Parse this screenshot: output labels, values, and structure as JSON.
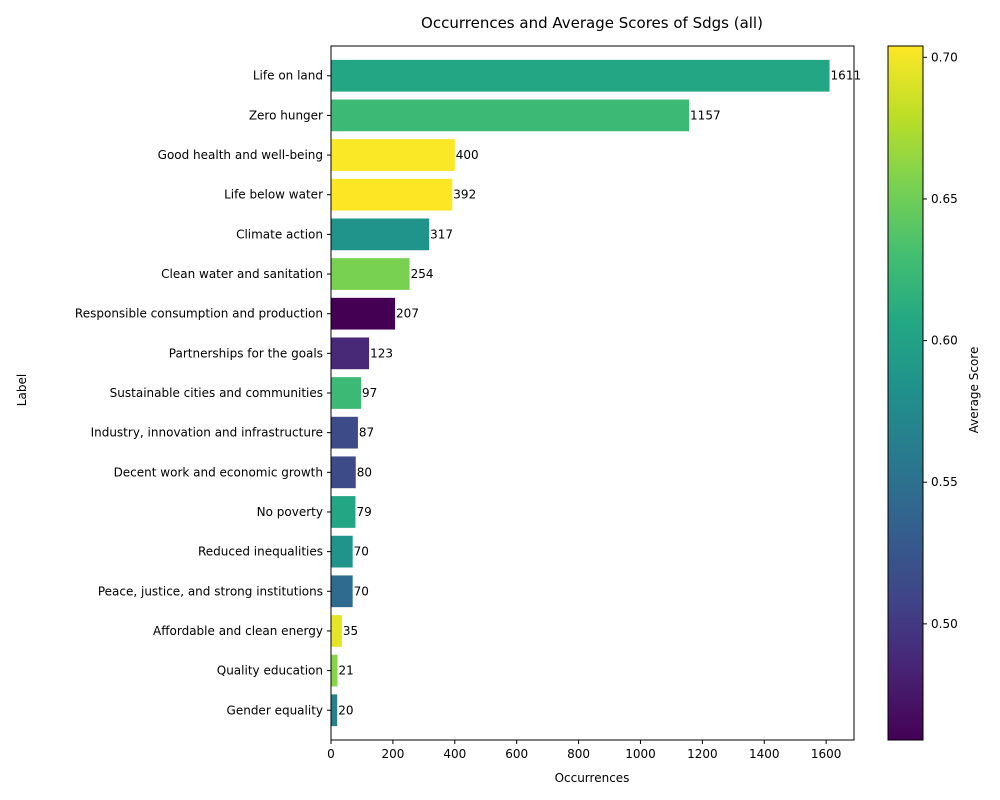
{
  "chart_data": {
    "type": "bar",
    "orientation": "horizontal",
    "title": "Occurrences and Average Scores of Sdgs (all)",
    "xlabel": "Occurrences",
    "ylabel": "Label",
    "xlim": [
      0,
      1690
    ],
    "xticks": [
      0,
      200,
      400,
      600,
      800,
      1000,
      1200,
      1400,
      1600
    ],
    "categories": [
      "Life on land",
      "Zero hunger",
      "Good health and well-being",
      "Life below water",
      "Climate action",
      "Clean water and sanitation",
      "Responsible consumption and production",
      "Partnerships for the goals",
      "Sustainable cities and communities",
      "Industry, innovation and infrastructure",
      "Decent work and economic growth",
      "No poverty",
      "Reduced inequalities",
      "Peace, justice, and strong institutions",
      "Affordable and clean energy",
      "Quality education",
      "Gender equality"
    ],
    "values": [
      1611,
      1157,
      400,
      392,
      317,
      254,
      207,
      123,
      97,
      87,
      80,
      79,
      70,
      70,
      35,
      21,
      20
    ],
    "average_scores": [
      0.605,
      0.625,
      0.703,
      0.704,
      0.585,
      0.655,
      0.459,
      0.488,
      0.625,
      0.515,
      0.515,
      0.605,
      0.585,
      0.545,
      0.695,
      0.66,
      0.565
    ],
    "colorbar": {
      "label": "Average Score",
      "colormap": "viridis",
      "range": [
        0.459,
        0.704
      ],
      "ticks": [
        0.5,
        0.55,
        0.6,
        0.65,
        0.7
      ],
      "tick_labels": [
        "0.50",
        "0.55",
        "0.60",
        "0.65",
        "0.70"
      ]
    },
    "grid": false
  }
}
